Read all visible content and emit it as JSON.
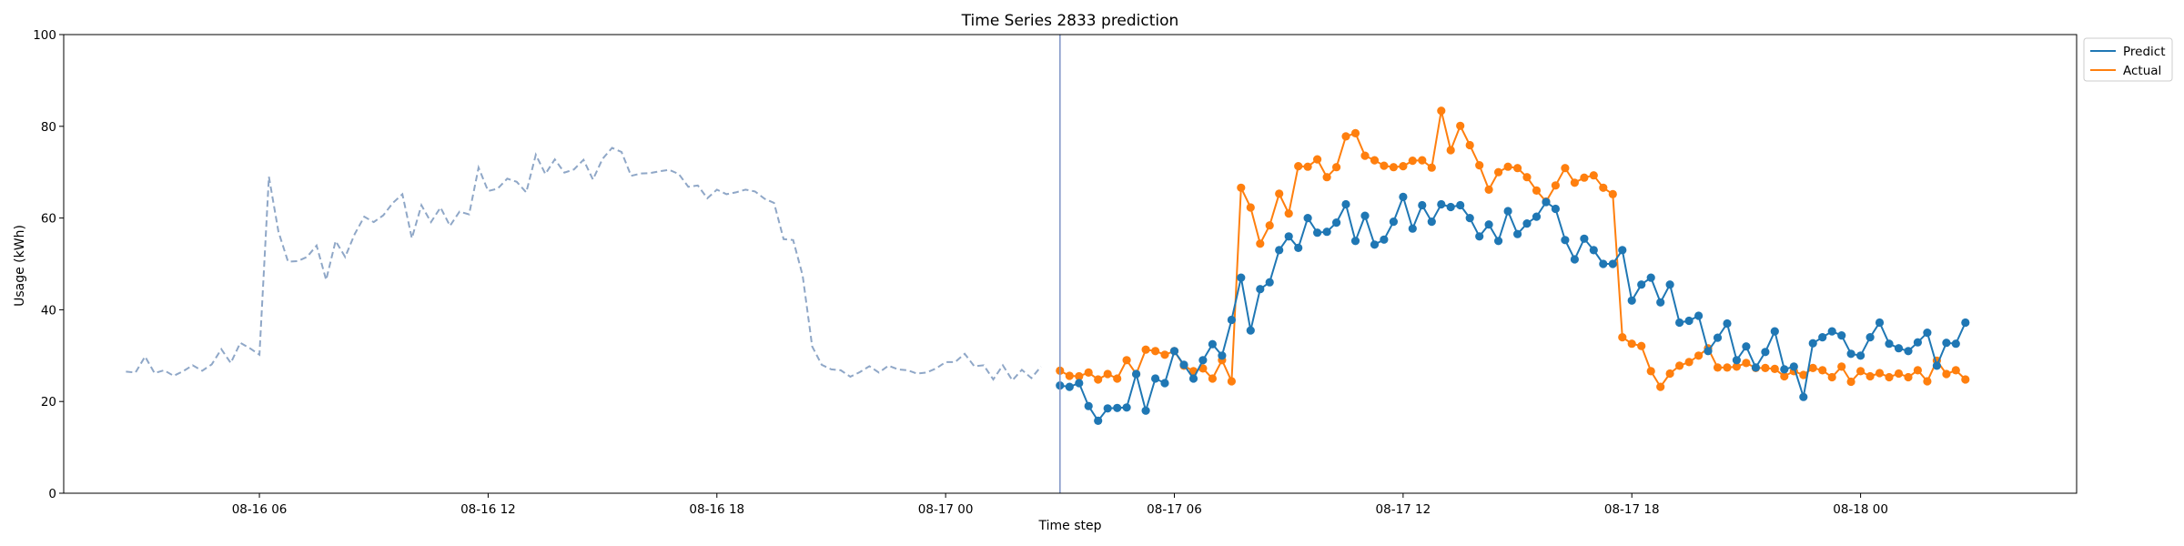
{
  "chart_data": {
    "type": "line",
    "title": "Time Series 2833 prediction",
    "xlabel": "Time step",
    "ylabel": "Usage (kWh)",
    "ylim": [
      0,
      100
    ],
    "yticks": [
      0,
      20,
      40,
      60,
      80,
      100
    ],
    "xticks": [
      {
        "x": "08-16 06:00",
        "label": "08-16 06"
      },
      {
        "x": "08-16 12:00",
        "label": "08-16 12"
      },
      {
        "x": "08-16 18:00",
        "label": "08-16 18"
      },
      {
        "x": "08-17 00:00",
        "label": "08-17 00"
      },
      {
        "x": "08-17 06:00",
        "label": "08-17 06"
      },
      {
        "x": "08-17 12:00",
        "label": "08-17 12"
      },
      {
        "x": "08-17 18:00",
        "label": "08-17 18"
      },
      {
        "x": "08-18 00:00",
        "label": "08-18 00"
      }
    ],
    "xlim": [
      "08-16 00:52",
      "08-18 05:40"
    ],
    "split_time": "08-17 03:00",
    "legend_position": "outside-top-right",
    "grid": false,
    "history": {
      "start": "08-16 02:30",
      "step_minutes": 15,
      "color": "#8fa7c7",
      "style": "dashed",
      "values": [
        26.5,
        26.3,
        29.8,
        26.2,
        26.8,
        25.6,
        26.6,
        27.9,
        26.7,
        28.1,
        31.4,
        28.4,
        32.8,
        31.6,
        30.2,
        69,
        57,
        50.5,
        50.6,
        51.5,
        54,
        46.5,
        55,
        51.5,
        56.5,
        60.3,
        59.1,
        60.6,
        63.3,
        65.2,
        55.6,
        62.8,
        59.1,
        62.3,
        58.3,
        61.4,
        60.8,
        71,
        65.9,
        66.4,
        68.6,
        67.9,
        65.6,
        73.8,
        69.6,
        72.8,
        69.9,
        70.6,
        72.7,
        68.4,
        72.9,
        75.3,
        74.4,
        69.2,
        69.7,
        69.8,
        70.2,
        70.5,
        69.6,
        66.8,
        67.1,
        64.3,
        66.2,
        65.2,
        65.6,
        66.2,
        65.8,
        64.2,
        63.3,
        55.4,
        55.2,
        47.5,
        32,
        28,
        27,
        26.8,
        25.4,
        26.4,
        27.7,
        26.3,
        27.8,
        27,
        26.8,
        26.1,
        26.3,
        27.2,
        28.6,
        28.6,
        30.4,
        27.7,
        27.9,
        24.8,
        27.9,
        24.6,
        26.9,
        25.1,
        27.6
      ]
    },
    "series": [
      {
        "name": "Predict",
        "color": "#1f77b4",
        "start": "08-17 03:00",
        "step_minutes": 15,
        "values": [
          23.5,
          23.2,
          24,
          19,
          15.8,
          18.5,
          18.6,
          18.7,
          26,
          18,
          25,
          24,
          31,
          28,
          25,
          29,
          32.5,
          30,
          37.8,
          47,
          35.5,
          44.5,
          46,
          53,
          56,
          53.5,
          60,
          56.8,
          57,
          59,
          63,
          55,
          60.5,
          54.2,
          55.3,
          59.2,
          64.6,
          57.7,
          62.8,
          59.2,
          63,
          62.4,
          62.8,
          60,
          56,
          58.6,
          55,
          61.5,
          56.5,
          58.8,
          60.3,
          63.5,
          62,
          55.2,
          51,
          55.5,
          53,
          50,
          50,
          53,
          42,
          45.5,
          47,
          41.6,
          45.5,
          37.2,
          37.6,
          38.7,
          31,
          33.9,
          37,
          29,
          32,
          27.4,
          30.8,
          35.3,
          27,
          27.6,
          21,
          32.7,
          34,
          35.3,
          34.4,
          30.4,
          30,
          34,
          37.2,
          32.6,
          31.6,
          31,
          32.9,
          35,
          27.8,
          32.8,
          32.6,
          37.2
        ]
      },
      {
        "name": "Actual",
        "color": "#ff7f0e",
        "start": "08-17 03:00",
        "step_minutes": 15,
        "values": [
          26.7,
          25.6,
          25.5,
          26.3,
          24.8,
          26,
          25,
          29,
          26,
          31.3,
          31,
          30.2,
          31,
          27.8,
          26.6,
          27.2,
          25,
          29,
          24.4,
          66.6,
          62.3,
          54.4,
          58.4,
          65.3,
          61,
          71.3,
          71.2,
          72.8,
          68.9,
          71.1,
          77.8,
          78.5,
          73.6,
          72.6,
          71.4,
          71.1,
          71.3,
          72.5,
          72.6,
          71,
          83.4,
          74.8,
          80.1,
          75.9,
          71.5,
          66.2,
          70,
          71.2,
          70.9,
          68.9,
          66,
          63.6,
          67.1,
          70.9,
          67.7,
          68.8,
          69.3,
          66.6,
          65.2,
          34,
          32.6,
          32.1,
          26.6,
          23.2,
          26.1,
          27.8,
          28.6,
          30,
          31.6,
          27.4,
          27.4,
          27.6,
          28.4,
          27.3,
          27.3,
          27.1,
          25.5,
          26.6,
          25.8,
          27.3,
          26.8,
          25.3,
          27.6,
          24.3,
          26.6,
          25.5,
          26.2,
          25.3,
          26.1,
          25.3,
          26.8,
          24.4,
          28.9,
          26,
          26.8,
          24.8
        ]
      }
    ]
  }
}
